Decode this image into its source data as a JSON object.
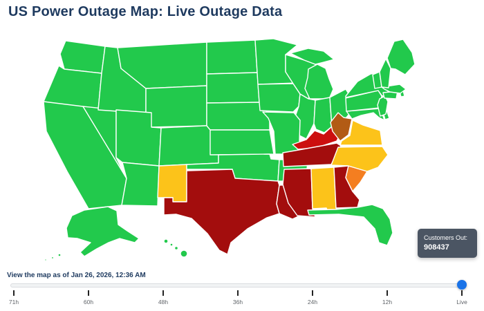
{
  "title": "US Power Outage Map: Live Outage Data",
  "colors": {
    "title_text": "#1e3a5f",
    "caption_text": "#1e3a5f",
    "tooltip_bg": "#4b5563",
    "tooltip_text": "#ffffff",
    "slider_handle": "#1a73e8",
    "state_border": "#ffffff"
  },
  "tooltip": {
    "label": "Customers Out:",
    "value": "908437"
  },
  "timeline": {
    "caption": "View the map as of Jan 26, 2026, 12:36 AM",
    "ticks": [
      "71h",
      "60h",
      "48h",
      "36h",
      "24h",
      "12h",
      "Live"
    ],
    "selected": "Live"
  },
  "map": {
    "level_colors": {
      "green": "#22c94c",
      "yellow": "#fcc31a",
      "orange": "#f47e20",
      "brown": "#b25b15",
      "red": "#cc0f0f",
      "dark-red": "#a30d0d"
    },
    "states": [
      {
        "id": "WA",
        "name": "Washington",
        "level": "green"
      },
      {
        "id": "OR",
        "name": "Oregon",
        "level": "green"
      },
      {
        "id": "CA",
        "name": "California",
        "level": "green"
      },
      {
        "id": "NV",
        "name": "Nevada",
        "level": "green"
      },
      {
        "id": "ID",
        "name": "Idaho",
        "level": "green"
      },
      {
        "id": "MT",
        "name": "Montana",
        "level": "green"
      },
      {
        "id": "WY",
        "name": "Wyoming",
        "level": "green"
      },
      {
        "id": "UT",
        "name": "Utah",
        "level": "green"
      },
      {
        "id": "CO",
        "name": "Colorado",
        "level": "green"
      },
      {
        "id": "AZ",
        "name": "Arizona",
        "level": "green"
      },
      {
        "id": "NM",
        "name": "New Mexico",
        "level": "yellow"
      },
      {
        "id": "ND",
        "name": "North Dakota",
        "level": "green"
      },
      {
        "id": "SD",
        "name": "South Dakota",
        "level": "green"
      },
      {
        "id": "NE",
        "name": "Nebraska",
        "level": "green"
      },
      {
        "id": "KS",
        "name": "Kansas",
        "level": "green"
      },
      {
        "id": "OK",
        "name": "Oklahoma",
        "level": "green"
      },
      {
        "id": "TX",
        "name": "Texas",
        "level": "dark-red"
      },
      {
        "id": "MN",
        "name": "Minnesota",
        "level": "green"
      },
      {
        "id": "IA",
        "name": "Iowa",
        "level": "green"
      },
      {
        "id": "WI",
        "name": "Wisconsin",
        "level": "green"
      },
      {
        "id": "IL",
        "name": "Illinois",
        "level": "green"
      },
      {
        "id": "MO",
        "name": "Missouri",
        "level": "green"
      },
      {
        "id": "AR",
        "name": "Arkansas",
        "level": "green"
      },
      {
        "id": "LA",
        "name": "Louisiana",
        "level": "dark-red"
      },
      {
        "id": "MI",
        "name": "Michigan",
        "level": "green"
      },
      {
        "id": "IN",
        "name": "Indiana",
        "level": "green"
      },
      {
        "id": "OH",
        "name": "Ohio",
        "level": "green"
      },
      {
        "id": "KY",
        "name": "Kentucky",
        "level": "red"
      },
      {
        "id": "TN",
        "name": "Tennessee",
        "level": "dark-red"
      },
      {
        "id": "MS",
        "name": "Mississippi",
        "level": "dark-red"
      },
      {
        "id": "AL",
        "name": "Alabama",
        "level": "yellow"
      },
      {
        "id": "GA",
        "name": "Georgia",
        "level": "dark-red"
      },
      {
        "id": "FL",
        "name": "Florida",
        "level": "green"
      },
      {
        "id": "SC",
        "name": "South Carolina",
        "level": "orange"
      },
      {
        "id": "NC",
        "name": "North Carolina",
        "level": "yellow"
      },
      {
        "id": "VA",
        "name": "Virginia",
        "level": "yellow"
      },
      {
        "id": "WV",
        "name": "West Virginia",
        "level": "brown"
      },
      {
        "id": "MD",
        "name": "Maryland",
        "level": "green"
      },
      {
        "id": "DE",
        "name": "Delaware",
        "level": "green"
      },
      {
        "id": "PA",
        "name": "Pennsylvania",
        "level": "green"
      },
      {
        "id": "NJ",
        "name": "New Jersey",
        "level": "green"
      },
      {
        "id": "NY",
        "name": "New York",
        "level": "green"
      },
      {
        "id": "CT",
        "name": "Connecticut",
        "level": "green"
      },
      {
        "id": "RI",
        "name": "Rhode Island",
        "level": "green"
      },
      {
        "id": "MA",
        "name": "Massachusetts",
        "level": "green"
      },
      {
        "id": "VT",
        "name": "Vermont",
        "level": "green"
      },
      {
        "id": "NH",
        "name": "New Hampshire",
        "level": "green"
      },
      {
        "id": "ME",
        "name": "Maine",
        "level": "green"
      },
      {
        "id": "AK",
        "name": "Alaska",
        "level": "green"
      },
      {
        "id": "HI",
        "name": "Hawaii",
        "level": "green"
      }
    ]
  }
}
